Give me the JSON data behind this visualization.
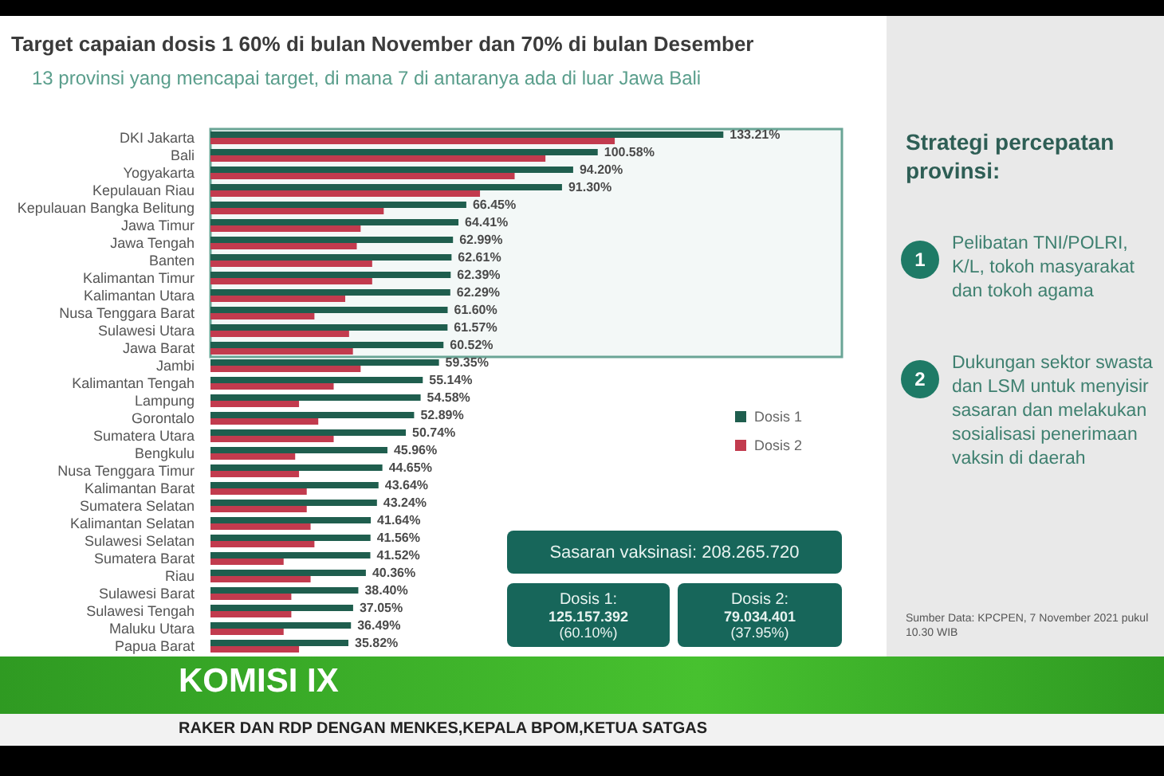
{
  "chart_data": {
    "type": "bar",
    "orientation": "horizontal",
    "title": "Target capaian dosis 1 60% di bulan November dan 70% di bulan Desember",
    "subtitle": "13 provinsi yang mencapai target, di mana 7 di antaranya ada di luar Jawa Bali",
    "categories": [
      "DKI Jakarta",
      "Bali",
      "Yogyakarta",
      "Kepulauan Riau",
      "Kepulauan Bangka Belitung",
      "Jawa Timur",
      "Jawa Tengah",
      "Banten",
      "Kalimantan Timur",
      "Kalimantan Utara",
      "Nusa Tenggara Barat",
      "Sulawesi Utara",
      "Jawa Barat",
      "Jambi",
      "Kalimantan Tengah",
      "Lampung",
      "Gorontalo",
      "Sumatera Utara",
      "Bengkulu",
      "Nusa Tenggara Timur",
      "Kalimantan Barat",
      "Sumatera Selatan",
      "Kalimantan Selatan",
      "Sulawesi Selatan",
      "Sumatera Barat",
      "Riau",
      "Sulawesi Barat",
      "Sulawesi Tengah",
      "Maluku Utara",
      "Papua Barat"
    ],
    "series": [
      {
        "name": "Dosis 1",
        "color": "#1f5e4e",
        "values": [
          133.21,
          100.58,
          94.2,
          91.3,
          66.45,
          64.41,
          62.99,
          62.61,
          62.39,
          62.29,
          61.6,
          61.57,
          60.52,
          59.35,
          55.14,
          54.58,
          52.89,
          50.74,
          45.96,
          44.65,
          43.64,
          43.24,
          41.64,
          41.56,
          41.52,
          40.36,
          38.4,
          37.05,
          36.49,
          35.82
        ],
        "value_labels": [
          "133.21%",
          "100.58%",
          "94.20%",
          "91.30%",
          "66.45%",
          "64.41%",
          "62.99%",
          "62.61%",
          "62.39%",
          "62.29%",
          "61.60%",
          "61.57%",
          "60.52%",
          "59.35%",
          "55.14%",
          "54.58%",
          "52.89%",
          "50.74%",
          "45.96%",
          "44.65%",
          "43.64%",
          "43.24%",
          "41.64%",
          "41.56%",
          "41.52%",
          "40.36%",
          "38.40%",
          "37.05%",
          "36.49%",
          "35.82%"
        ]
      },
      {
        "name": "Dosis 2",
        "color": "#c23b4e",
        "values": [
          105,
          87,
          79,
          70,
          45,
          39,
          38,
          42,
          42,
          35,
          27,
          36,
          37,
          39,
          32,
          23,
          28,
          32,
          22,
          23,
          25,
          25,
          26,
          27,
          19,
          26,
          21,
          21,
          19,
          23
        ]
      }
    ],
    "xlim": [
      0,
      164
    ],
    "tick_labels": "y",
    "legend": "right",
    "bands": [
      {
        "axis": "y",
        "from": "DKI Jakarta",
        "to": "Jawa Barat",
        "color": "#6aa596"
      }
    ],
    "annotations": [
      "Strategi percepatan provinsi:",
      "1",
      "Pelibatan TNI/POLRI, K/L, tokoh masyarakat dan tokoh agama",
      "2",
      "Dukungan sektor swasta dan LSM untuk menyisir sasaran dan melakukan sosialisasi penerimaan vaksin di daerah",
      "Sasaran vaksinasi: 208.265.720",
      "Dosis 1:\n125.157.392\n(60.10%)",
      "Dosis 2:\n79.034.401\n(37.95%)",
      "Sumber Data: KPCPEN, 7 November 2021 pukul 10.30 WIB",
      "KOMISI IX",
      "RAKER DAN RDP DENGAN MENKES,KEPALA BPOM,KETUA SATGAS"
    ]
  }
}
